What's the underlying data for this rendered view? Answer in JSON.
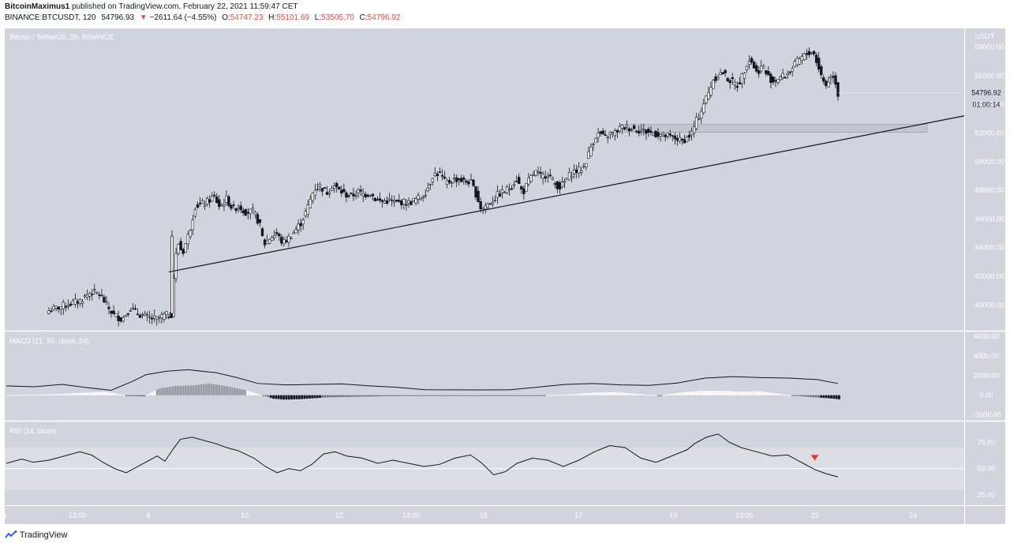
{
  "header": {
    "author": "BitcoinMaximus1",
    "published_text": "published on TradingView.com, February 22, 2021 11:59:47 CET",
    "symbol_line": "BINANCE:BTCUSDT, 120",
    "last_price": "54796.93",
    "change": "−2611.64 (−4.55%)",
    "open_label": "O:",
    "open": "54747.23",
    "high_label": "H:",
    "high": "55101.69",
    "low_label": "L:",
    "low": "53505.70",
    "close_label": "C:",
    "close": "54796.92"
  },
  "footer": {
    "brand": "TradingView"
  },
  "colors": {
    "panel_bg": "#d1d4dc",
    "accent_red": "#e03a3a",
    "line": "#131722"
  },
  "chart_data": [
    {
      "type": "candlestick",
      "title": "Bitcoin / TetherUS, 2h, BINANCE",
      "currency": "USDT",
      "y_ticks": [
        "58000.00",
        "56000.00",
        "54000.00",
        "52000.00",
        "50000.00",
        "48000.00",
        "46000.00",
        "44000.00",
        "42000.00",
        "40000.00"
      ],
      "ylim": [
        38200,
        59300
      ],
      "last_price_label": "54796.92",
      "countdown_label": "01:00:14",
      "x_ticks": [
        "5",
        "13:00",
        "8",
        "10",
        "12",
        "13:00",
        "15",
        "17",
        "19",
        "13:00",
        "22",
        "24"
      ],
      "close_path": [
        [
          0,
          39600
        ],
        [
          12,
          39900
        ],
        [
          30,
          40300
        ],
        [
          40,
          40900
        ],
        [
          48,
          40800
        ],
        [
          56,
          39900
        ],
        [
          62,
          39300
        ],
        [
          70,
          39000
        ],
        [
          78,
          39800
        ],
        [
          85,
          39400
        ],
        [
          95,
          39100
        ],
        [
          103,
          39000
        ],
        [
          110,
          39250
        ],
        [
          118,
          39350
        ],
        [
          120,
          42800
        ],
        [
          124,
          44300
        ],
        [
          128,
          43600
        ],
        [
          135,
          45200
        ],
        [
          140,
          46900
        ],
        [
          146,
          47000
        ],
        [
          152,
          47200
        ],
        [
          158,
          47600
        ],
        [
          164,
          46800
        ],
        [
          170,
          47400
        ],
        [
          176,
          46700
        ],
        [
          182,
          46900
        ],
        [
          188,
          46500
        ],
        [
          196,
          46500
        ],
        [
          202,
          45600
        ],
        [
          206,
          44200
        ],
        [
          212,
          44700
        ],
        [
          218,
          45000
        ],
        [
          224,
          44300
        ],
        [
          230,
          44700
        ],
        [
          236,
          45200
        ],
        [
          242,
          45800
        ],
        [
          248,
          46800
        ],
        [
          254,
          48100
        ],
        [
          260,
          48300
        ],
        [
          266,
          47800
        ],
        [
          272,
          48400
        ],
        [
          278,
          48000
        ],
        [
          284,
          47700
        ],
        [
          290,
          47600
        ],
        [
          296,
          47900
        ],
        [
          302,
          47700
        ],
        [
          308,
          47800
        ],
        [
          314,
          47300
        ],
        [
          320,
          47200
        ],
        [
          326,
          47300
        ],
        [
          332,
          47100
        ],
        [
          338,
          47200
        ],
        [
          344,
          47100
        ],
        [
          350,
          47300
        ],
        [
          356,
          47500
        ],
        [
          362,
          48000
        ],
        [
          368,
          49100
        ],
        [
          374,
          49200
        ],
        [
          380,
          48500
        ],
        [
          386,
          48700
        ],
        [
          392,
          48800
        ],
        [
          398,
          48600
        ],
        [
          404,
          48600
        ],
        [
          410,
          47600
        ],
        [
          414,
          46700
        ],
        [
          418,
          46900
        ],
        [
          424,
          47200
        ],
        [
          430,
          47700
        ],
        [
          436,
          47900
        ],
        [
          442,
          48200
        ],
        [
          448,
          48800
        ],
        [
          454,
          47800
        ],
        [
          460,
          48700
        ],
        [
          466,
          49300
        ],
        [
          472,
          48900
        ],
        [
          478,
          49200
        ],
        [
          484,
          48500
        ],
        [
          490,
          48200
        ],
        [
          496,
          48800
        ],
        [
          502,
          49300
        ],
        [
          508,
          49400
        ],
        [
          512,
          49600
        ],
        [
          516,
          50300
        ],
        [
          520,
          51200
        ],
        [
          524,
          51800
        ],
        [
          528,
          52000
        ],
        [
          532,
          51600
        ],
        [
          536,
          51900
        ],
        [
          542,
          52000
        ],
        [
          548,
          52400
        ],
        [
          554,
          52400
        ],
        [
          560,
          52300
        ],
        [
          566,
          52200
        ],
        [
          572,
          52100
        ],
        [
          578,
          52000
        ],
        [
          584,
          51900
        ],
        [
          590,
          51800
        ],
        [
          596,
          51700
        ],
        [
          602,
          51600
        ],
        [
          606,
          51400
        ],
        [
          612,
          51700
        ],
        [
          616,
          52000
        ],
        [
          620,
          52800
        ],
        [
          624,
          53400
        ],
        [
          628,
          54200
        ],
        [
          632,
          54800
        ],
        [
          636,
          55700
        ],
        [
          642,
          56100
        ],
        [
          646,
          56200
        ],
        [
          650,
          55800
        ],
        [
          656,
          55500
        ],
        [
          660,
          55300
        ],
        [
          666,
          56300
        ],
        [
          670,
          57200
        ],
        [
          674,
          56900
        ],
        [
          678,
          56200
        ],
        [
          684,
          56700
        ],
        [
          688,
          56000
        ],
        [
          694,
          55600
        ],
        [
          700,
          55900
        ],
        [
          706,
          56000
        ],
        [
          712,
          56500
        ],
        [
          716,
          56900
        ],
        [
          722,
          57300
        ],
        [
          728,
          57600
        ],
        [
          732,
          57700
        ],
        [
          736,
          56900
        ],
        [
          740,
          56000
        ],
        [
          744,
          55300
        ],
        [
          748,
          55800
        ],
        [
          752,
          56100
        ],
        [
          756,
          54700
        ]
      ]
    },
    {
      "type": "line",
      "title": "MACD (21, 50, close, 24)",
      "y_ticks": [
        "6000.00",
        "4000.00",
        "2000.00",
        "0.00",
        "−2000.00"
      ],
      "ylim": [
        -2600,
        6500
      ],
      "macd_line": [
        [
          0,
          950
        ],
        [
          40,
          860
        ],
        [
          80,
          1100
        ],
        [
          110,
          820
        ],
        [
          150,
          500
        ],
        [
          180,
          1400
        ],
        [
          200,
          2100
        ],
        [
          230,
          2450
        ],
        [
          260,
          2600
        ],
        [
          300,
          2300
        ],
        [
          330,
          1800
        ],
        [
          360,
          1200
        ],
        [
          400,
          1050
        ],
        [
          440,
          1100
        ],
        [
          480,
          1150
        ],
        [
          520,
          950
        ],
        [
          560,
          800
        ],
        [
          600,
          560
        ],
        [
          640,
          550
        ],
        [
          680,
          540
        ],
        [
          720,
          550
        ],
        [
          760,
          820
        ],
        [
          800,
          1100
        ],
        [
          840,
          1200
        ],
        [
          880,
          1050
        ],
        [
          920,
          1000
        ],
        [
          960,
          1250
        ],
        [
          1000,
          1750
        ],
        [
          1040,
          1900
        ],
        [
          1080,
          1800
        ],
        [
          1120,
          1750
        ],
        [
          1160,
          1600
        ],
        [
          1190,
          1200
        ]
      ],
      "histogram": [
        [
          0,
          0
        ],
        [
          70,
          120
        ],
        [
          100,
          250
        ],
        [
          130,
          350
        ],
        [
          160,
          -80
        ],
        [
          180,
          -120
        ],
        [
          200,
          700
        ],
        [
          222,
          950
        ],
        [
          245,
          1000
        ],
        [
          265,
          1200
        ],
        [
          290,
          900
        ],
        [
          315,
          500
        ],
        [
          335,
          0
        ],
        [
          350,
          -350
        ],
        [
          365,
          -450
        ],
        [
          385,
          -400
        ],
        [
          420,
          -220
        ],
        [
          460,
          -150
        ],
        [
          500,
          -100
        ],
        [
          540,
          -60
        ],
        [
          580,
          -50
        ],
        [
          620,
          -40
        ],
        [
          660,
          -30
        ],
        [
          700,
          -20
        ],
        [
          740,
          80
        ],
        [
          770,
          250
        ],
        [
          800,
          320
        ],
        [
          830,
          120
        ],
        [
          860,
          -20
        ],
        [
          890,
          300
        ],
        [
          915,
          450
        ],
        [
          940,
          450
        ],
        [
          965,
          350
        ],
        [
          990,
          420
        ],
        [
          1010,
          200
        ],
        [
          1040,
          -80
        ],
        [
          1060,
          -200
        ],
        [
          1080,
          -300
        ],
        [
          1095,
          -420
        ]
      ]
    },
    {
      "type": "line",
      "title": "RSI (14, close)",
      "y_ticks": [
        "75.00",
        "50.00",
        "25.00"
      ],
      "ylim": [
        15,
        95
      ],
      "band": [
        30,
        70
      ],
      "mid_line": 50,
      "rsi": [
        [
          0,
          55
        ],
        [
          20,
          59
        ],
        [
          35,
          56
        ],
        [
          55,
          58
        ],
        [
          75,
          62
        ],
        [
          95,
          66
        ],
        [
          110,
          63
        ],
        [
          125,
          56
        ],
        [
          140,
          50
        ],
        [
          155,
          46
        ],
        [
          170,
          52
        ],
        [
          185,
          58
        ],
        [
          195,
          62
        ],
        [
          205,
          57
        ],
        [
          215,
          68
        ],
        [
          225,
          78
        ],
        [
          240,
          80
        ],
        [
          255,
          77
        ],
        [
          270,
          74
        ],
        [
          285,
          70
        ],
        [
          300,
          67
        ],
        [
          320,
          60
        ],
        [
          335,
          52
        ],
        [
          350,
          46
        ],
        [
          365,
          50
        ],
        [
          380,
          48
        ],
        [
          395,
          54
        ],
        [
          410,
          64
        ],
        [
          425,
          66
        ],
        [
          440,
          62
        ],
        [
          460,
          60
        ],
        [
          480,
          55
        ],
        [
          500,
          58
        ],
        [
          520,
          55
        ],
        [
          540,
          52
        ],
        [
          560,
          54
        ],
        [
          580,
          60
        ],
        [
          600,
          63
        ],
        [
          615,
          55
        ],
        [
          630,
          44
        ],
        [
          645,
          47
        ],
        [
          660,
          55
        ],
        [
          680,
          60
        ],
        [
          700,
          58
        ],
        [
          720,
          52
        ],
        [
          740,
          58
        ],
        [
          760,
          66
        ],
        [
          780,
          72
        ],
        [
          800,
          70
        ],
        [
          820,
          60
        ],
        [
          840,
          56
        ],
        [
          860,
          62
        ],
        [
          880,
          68
        ],
        [
          890,
          74
        ],
        [
          905,
          80
        ],
        [
          920,
          83
        ],
        [
          935,
          75
        ],
        [
          950,
          70
        ],
        [
          970,
          66
        ],
        [
          990,
          62
        ],
        [
          1010,
          63
        ],
        [
          1030,
          55
        ],
        [
          1045,
          49
        ],
        [
          1060,
          45
        ],
        [
          1075,
          42
        ]
      ],
      "markers": [
        [
          1045,
          60
        ]
      ]
    }
  ]
}
